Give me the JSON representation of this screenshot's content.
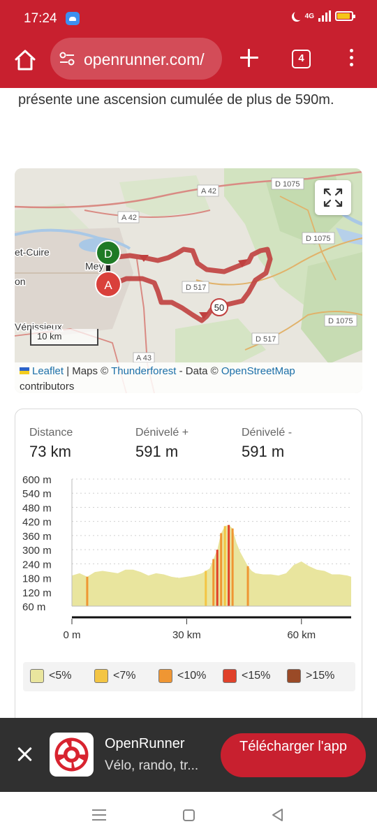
{
  "status_bar": {
    "time": "17:24",
    "network": "4G",
    "icons": [
      "app-notification-icon",
      "moon-icon",
      "signal-icon",
      "battery-icon"
    ]
  },
  "browser": {
    "url": "openrunner.com/",
    "tab_count": "4",
    "icons": [
      "home-icon",
      "site-settings-icon",
      "new-tab-icon",
      "tabs-icon",
      "more-icon"
    ],
    "accent_color": "#c8202f"
  },
  "article": {
    "intro_text": "présente une ascension cumulée de plus de 590m."
  },
  "map": {
    "labels": {
      "a42_1": "A 42",
      "a42_2": "A 42",
      "d1075_1": "D 1075",
      "d1075_2": "D 1075",
      "d1075_3": "D 1075",
      "d517_1": "D 517",
      "d517_2": "D 517",
      "a43": "A 43",
      "town_caluire": "et-Cuire",
      "town_meyzieu": "Mey",
      "town_lyon": "on",
      "town_venissieux": "Vénissieux",
      "marker_start": "D",
      "marker_end": "A",
      "km_marker": "50"
    },
    "scale": "10 km",
    "attribution": {
      "leaflet": "Leaflet",
      "maps_prefix": " | Maps © ",
      "thunderforest": "Thunderforest",
      "data_prefix": " - Data © ",
      "osm": "OpenStreetMap",
      "contributors": "contributors"
    },
    "route_color": "#c0403f",
    "start_marker_color": "#1f7a25",
    "end_marker_color": "#d9403b"
  },
  "stats": {
    "distance_label": "Distance",
    "distance_value": "73 km",
    "dplus_label": "Dénivelé +",
    "dplus_value": "591 m",
    "dminus_label": "Dénivelé -",
    "dminus_value": "591 m"
  },
  "chart_data": {
    "type": "area",
    "title": "",
    "xlabel": "",
    "ylabel": "",
    "x_ticks": [
      "0 m",
      "30 km",
      "60 km"
    ],
    "y_ticks": [
      "600 m",
      "540 m",
      "480 m",
      "420 m",
      "360 m",
      "300 m",
      "240 m",
      "180 m",
      "120 m",
      "60 m"
    ],
    "x_unit": "km",
    "y_unit": "m",
    "xlim": [
      0,
      73
    ],
    "ylim": [
      60,
      600
    ],
    "grid": "dotted horizontal",
    "series": [
      {
        "x": [
          0,
          2,
          4,
          6,
          8,
          10,
          12,
          14,
          16,
          18,
          20,
          22,
          24,
          26,
          28,
          30,
          32,
          34,
          36,
          37,
          38,
          39,
          40,
          41,
          42,
          43,
          44,
          45,
          46,
          47,
          48,
          50,
          52,
          54,
          56,
          58,
          60,
          62,
          64,
          66,
          68,
          70,
          72,
          73
        ],
        "y": [
          190,
          200,
          185,
          205,
          210,
          205,
          200,
          215,
          215,
          205,
          190,
          200,
          195,
          185,
          180,
          185,
          190,
          200,
          220,
          260,
          300,
          370,
          400,
          405,
          390,
          330,
          290,
          260,
          230,
          210,
          200,
          195,
          195,
          190,
          200,
          235,
          250,
          230,
          215,
          210,
          195,
          195,
          190,
          185
        ]
      }
    ],
    "steep_segments_km": [
      4,
      35,
      37,
      38,
      39,
      40,
      41,
      42,
      46
    ],
    "legend": [
      {
        "label": "<5%",
        "color": "#e9e59e"
      },
      {
        "label": "<7%",
        "color": "#f3c544"
      },
      {
        "label": "<10%",
        "color": "#ef9633"
      },
      {
        "label": "<15%",
        "color": "#e0412a"
      },
      {
        "label": ">15%",
        "color": "#9a4a27"
      }
    ]
  },
  "app_banner": {
    "title": "OpenRunner",
    "subtitle": "Vélo, rando, tr...",
    "cta": "Télécharger l'app",
    "icons": [
      "close-icon",
      "openrunner-logo"
    ]
  },
  "nav_bar": {
    "icons": [
      "recent-apps-icon",
      "home-nav-icon",
      "back-icon"
    ]
  }
}
